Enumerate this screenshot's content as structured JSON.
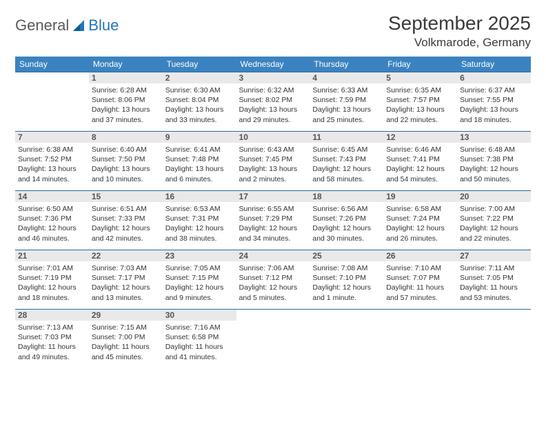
{
  "brand": {
    "text1": "General",
    "text2": "Blue"
  },
  "title": "September 2025",
  "location": "Volkmarode, Germany",
  "colors": {
    "header_bg": "#3b83c0",
    "header_text": "#ffffff",
    "row_border": "#2a6aa0",
    "daynum_bg": "#e9e9e9",
    "text": "#333333",
    "logo_gray": "#5a5a5a",
    "logo_blue": "#2176b8"
  },
  "weekdays": [
    "Sunday",
    "Monday",
    "Tuesday",
    "Wednesday",
    "Thursday",
    "Friday",
    "Saturday"
  ],
  "weeks": [
    [
      {
        "day": "",
        "lines": []
      },
      {
        "day": "1",
        "lines": [
          "Sunrise: 6:28 AM",
          "Sunset: 8:06 PM",
          "Daylight: 13 hours and 37 minutes."
        ]
      },
      {
        "day": "2",
        "lines": [
          "Sunrise: 6:30 AM",
          "Sunset: 8:04 PM",
          "Daylight: 13 hours and 33 minutes."
        ]
      },
      {
        "day": "3",
        "lines": [
          "Sunrise: 6:32 AM",
          "Sunset: 8:02 PM",
          "Daylight: 13 hours and 29 minutes."
        ]
      },
      {
        "day": "4",
        "lines": [
          "Sunrise: 6:33 AM",
          "Sunset: 7:59 PM",
          "Daylight: 13 hours and 25 minutes."
        ]
      },
      {
        "day": "5",
        "lines": [
          "Sunrise: 6:35 AM",
          "Sunset: 7:57 PM",
          "Daylight: 13 hours and 22 minutes."
        ]
      },
      {
        "day": "6",
        "lines": [
          "Sunrise: 6:37 AM",
          "Sunset: 7:55 PM",
          "Daylight: 13 hours and 18 minutes."
        ]
      }
    ],
    [
      {
        "day": "7",
        "lines": [
          "Sunrise: 6:38 AM",
          "Sunset: 7:52 PM",
          "Daylight: 13 hours and 14 minutes."
        ]
      },
      {
        "day": "8",
        "lines": [
          "Sunrise: 6:40 AM",
          "Sunset: 7:50 PM",
          "Daylight: 13 hours and 10 minutes."
        ]
      },
      {
        "day": "9",
        "lines": [
          "Sunrise: 6:41 AM",
          "Sunset: 7:48 PM",
          "Daylight: 13 hours and 6 minutes."
        ]
      },
      {
        "day": "10",
        "lines": [
          "Sunrise: 6:43 AM",
          "Sunset: 7:45 PM",
          "Daylight: 13 hours and 2 minutes."
        ]
      },
      {
        "day": "11",
        "lines": [
          "Sunrise: 6:45 AM",
          "Sunset: 7:43 PM",
          "Daylight: 12 hours and 58 minutes."
        ]
      },
      {
        "day": "12",
        "lines": [
          "Sunrise: 6:46 AM",
          "Sunset: 7:41 PM",
          "Daylight: 12 hours and 54 minutes."
        ]
      },
      {
        "day": "13",
        "lines": [
          "Sunrise: 6:48 AM",
          "Sunset: 7:38 PM",
          "Daylight: 12 hours and 50 minutes."
        ]
      }
    ],
    [
      {
        "day": "14",
        "lines": [
          "Sunrise: 6:50 AM",
          "Sunset: 7:36 PM",
          "Daylight: 12 hours and 46 minutes."
        ]
      },
      {
        "day": "15",
        "lines": [
          "Sunrise: 6:51 AM",
          "Sunset: 7:33 PM",
          "Daylight: 12 hours and 42 minutes."
        ]
      },
      {
        "day": "16",
        "lines": [
          "Sunrise: 6:53 AM",
          "Sunset: 7:31 PM",
          "Daylight: 12 hours and 38 minutes."
        ]
      },
      {
        "day": "17",
        "lines": [
          "Sunrise: 6:55 AM",
          "Sunset: 7:29 PM",
          "Daylight: 12 hours and 34 minutes."
        ]
      },
      {
        "day": "18",
        "lines": [
          "Sunrise: 6:56 AM",
          "Sunset: 7:26 PM",
          "Daylight: 12 hours and 30 minutes."
        ]
      },
      {
        "day": "19",
        "lines": [
          "Sunrise: 6:58 AM",
          "Sunset: 7:24 PM",
          "Daylight: 12 hours and 26 minutes."
        ]
      },
      {
        "day": "20",
        "lines": [
          "Sunrise: 7:00 AM",
          "Sunset: 7:22 PM",
          "Daylight: 12 hours and 22 minutes."
        ]
      }
    ],
    [
      {
        "day": "21",
        "lines": [
          "Sunrise: 7:01 AM",
          "Sunset: 7:19 PM",
          "Daylight: 12 hours and 18 minutes."
        ]
      },
      {
        "day": "22",
        "lines": [
          "Sunrise: 7:03 AM",
          "Sunset: 7:17 PM",
          "Daylight: 12 hours and 13 minutes."
        ]
      },
      {
        "day": "23",
        "lines": [
          "Sunrise: 7:05 AM",
          "Sunset: 7:15 PM",
          "Daylight: 12 hours and 9 minutes."
        ]
      },
      {
        "day": "24",
        "lines": [
          "Sunrise: 7:06 AM",
          "Sunset: 7:12 PM",
          "Daylight: 12 hours and 5 minutes."
        ]
      },
      {
        "day": "25",
        "lines": [
          "Sunrise: 7:08 AM",
          "Sunset: 7:10 PM",
          "Daylight: 12 hours and 1 minute."
        ]
      },
      {
        "day": "26",
        "lines": [
          "Sunrise: 7:10 AM",
          "Sunset: 7:07 PM",
          "Daylight: 11 hours and 57 minutes."
        ]
      },
      {
        "day": "27",
        "lines": [
          "Sunrise: 7:11 AM",
          "Sunset: 7:05 PM",
          "Daylight: 11 hours and 53 minutes."
        ]
      }
    ],
    [
      {
        "day": "28",
        "lines": [
          "Sunrise: 7:13 AM",
          "Sunset: 7:03 PM",
          "Daylight: 11 hours and 49 minutes."
        ]
      },
      {
        "day": "29",
        "lines": [
          "Sunrise: 7:15 AM",
          "Sunset: 7:00 PM",
          "Daylight: 11 hours and 45 minutes."
        ]
      },
      {
        "day": "30",
        "lines": [
          "Sunrise: 7:16 AM",
          "Sunset: 6:58 PM",
          "Daylight: 11 hours and 41 minutes."
        ]
      },
      {
        "day": "",
        "lines": []
      },
      {
        "day": "",
        "lines": []
      },
      {
        "day": "",
        "lines": []
      },
      {
        "day": "",
        "lines": []
      }
    ]
  ]
}
